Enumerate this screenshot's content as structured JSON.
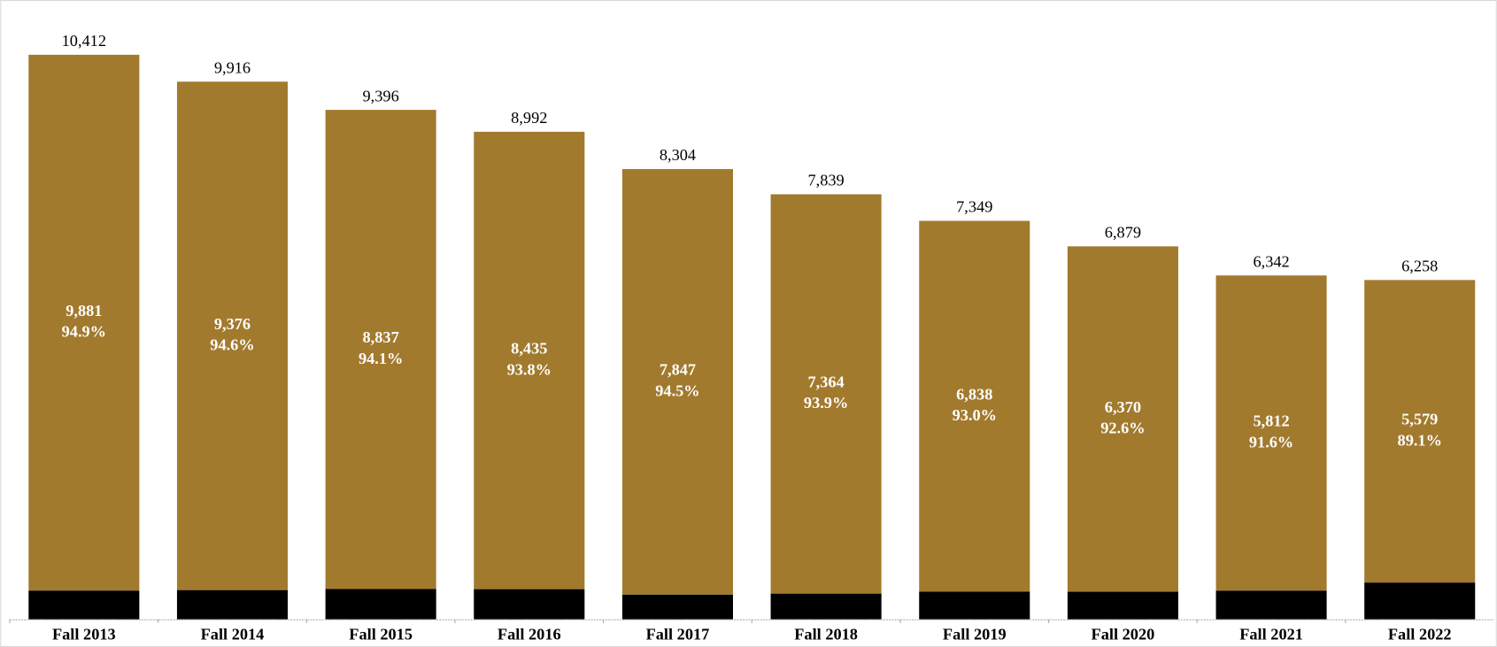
{
  "chart_data": {
    "type": "stacked-bar",
    "categories": [
      "Fall 2013",
      "Fall 2014",
      "Fall 2015",
      "Fall 2016",
      "Fall 2017",
      "Fall 2018",
      "Fall 2019",
      "Fall 2020",
      "Fall 2021",
      "Fall 2022"
    ],
    "series": [
      {
        "color": "#000000",
        "values": [
          531,
          540,
          559,
          557,
          457,
          475,
          511,
          509,
          530,
          679
        ]
      },
      {
        "color": "#a27a2e",
        "values": [
          9881,
          9376,
          8837,
          8435,
          7847,
          7364,
          6838,
          6370,
          5812,
          5579
        ],
        "value_labels": [
          "9,881",
          "9,376",
          "8,837",
          "8,435",
          "7,847",
          "7,364",
          "6,838",
          "6,370",
          "5,812",
          "5,579"
        ],
        "shares": [
          94.9,
          94.6,
          94.1,
          93.8,
          94.5,
          93.9,
          93.0,
          92.6,
          91.6,
          89.1
        ],
        "share_labels": [
          "94.9%",
          "94.6%",
          "94.1%",
          "93.8%",
          "94.5%",
          "93.9%",
          "93.0%",
          "92.6%",
          "91.6%",
          "89.1%"
        ]
      }
    ],
    "totals": [
      10412,
      9916,
      9396,
      8992,
      8304,
      7839,
      7349,
      6879,
      6342,
      6258
    ],
    "total_labels": [
      "10,412",
      "9,916",
      "9,396",
      "8,992",
      "8,304",
      "7,839",
      "7,349",
      "6,879",
      "6,342",
      "6,258"
    ],
    "ylim": [
      0,
      11000
    ]
  }
}
